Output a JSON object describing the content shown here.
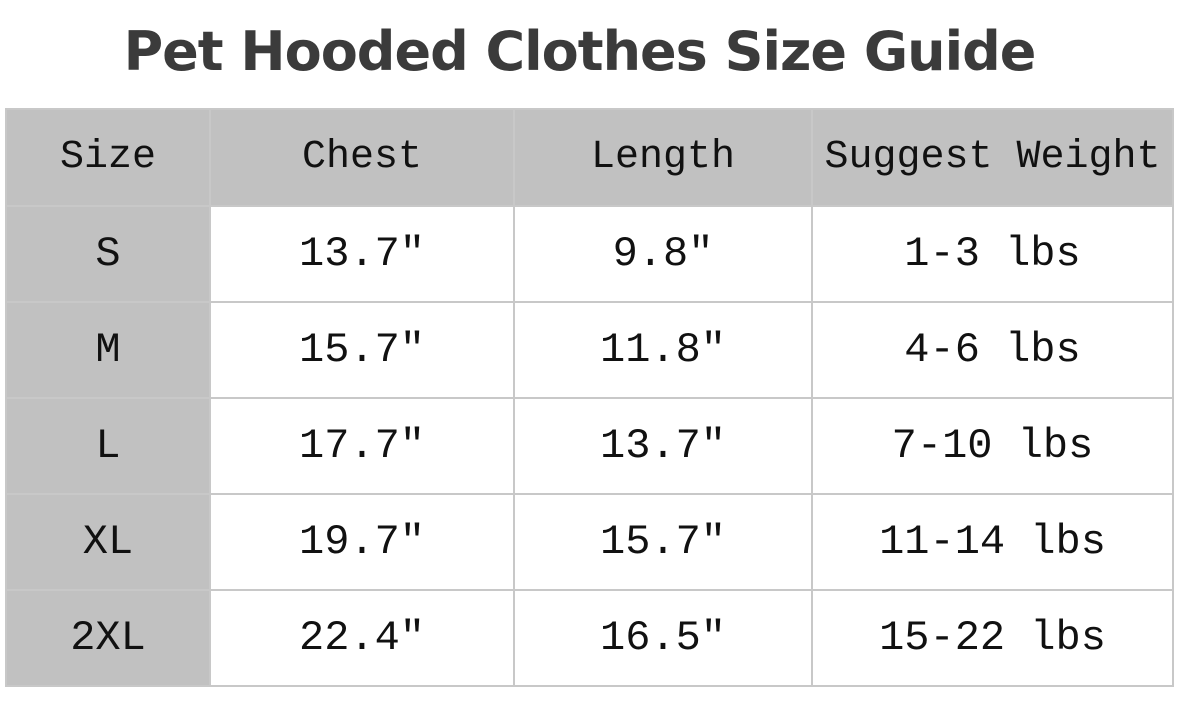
{
  "title": "Pet Hooded Clothes Size Guide",
  "table": {
    "header": [
      "Size",
      "Chest",
      "Length",
      "Suggest Weight"
    ],
    "rows": [
      [
        "S",
        "13.7″",
        "9.8″",
        "1-3 lbs"
      ],
      [
        "M",
        "15.7″",
        "11.8″",
        "4-6 lbs"
      ],
      [
        "L",
        "17.7″",
        "13.7″",
        "7-10 lbs"
      ],
      [
        "XL",
        "19.7″",
        "15.7″",
        "11-14 lbs"
      ],
      [
        "2XL",
        "22.4″",
        "16.5″",
        "15-22 lbs"
      ]
    ]
  }
}
